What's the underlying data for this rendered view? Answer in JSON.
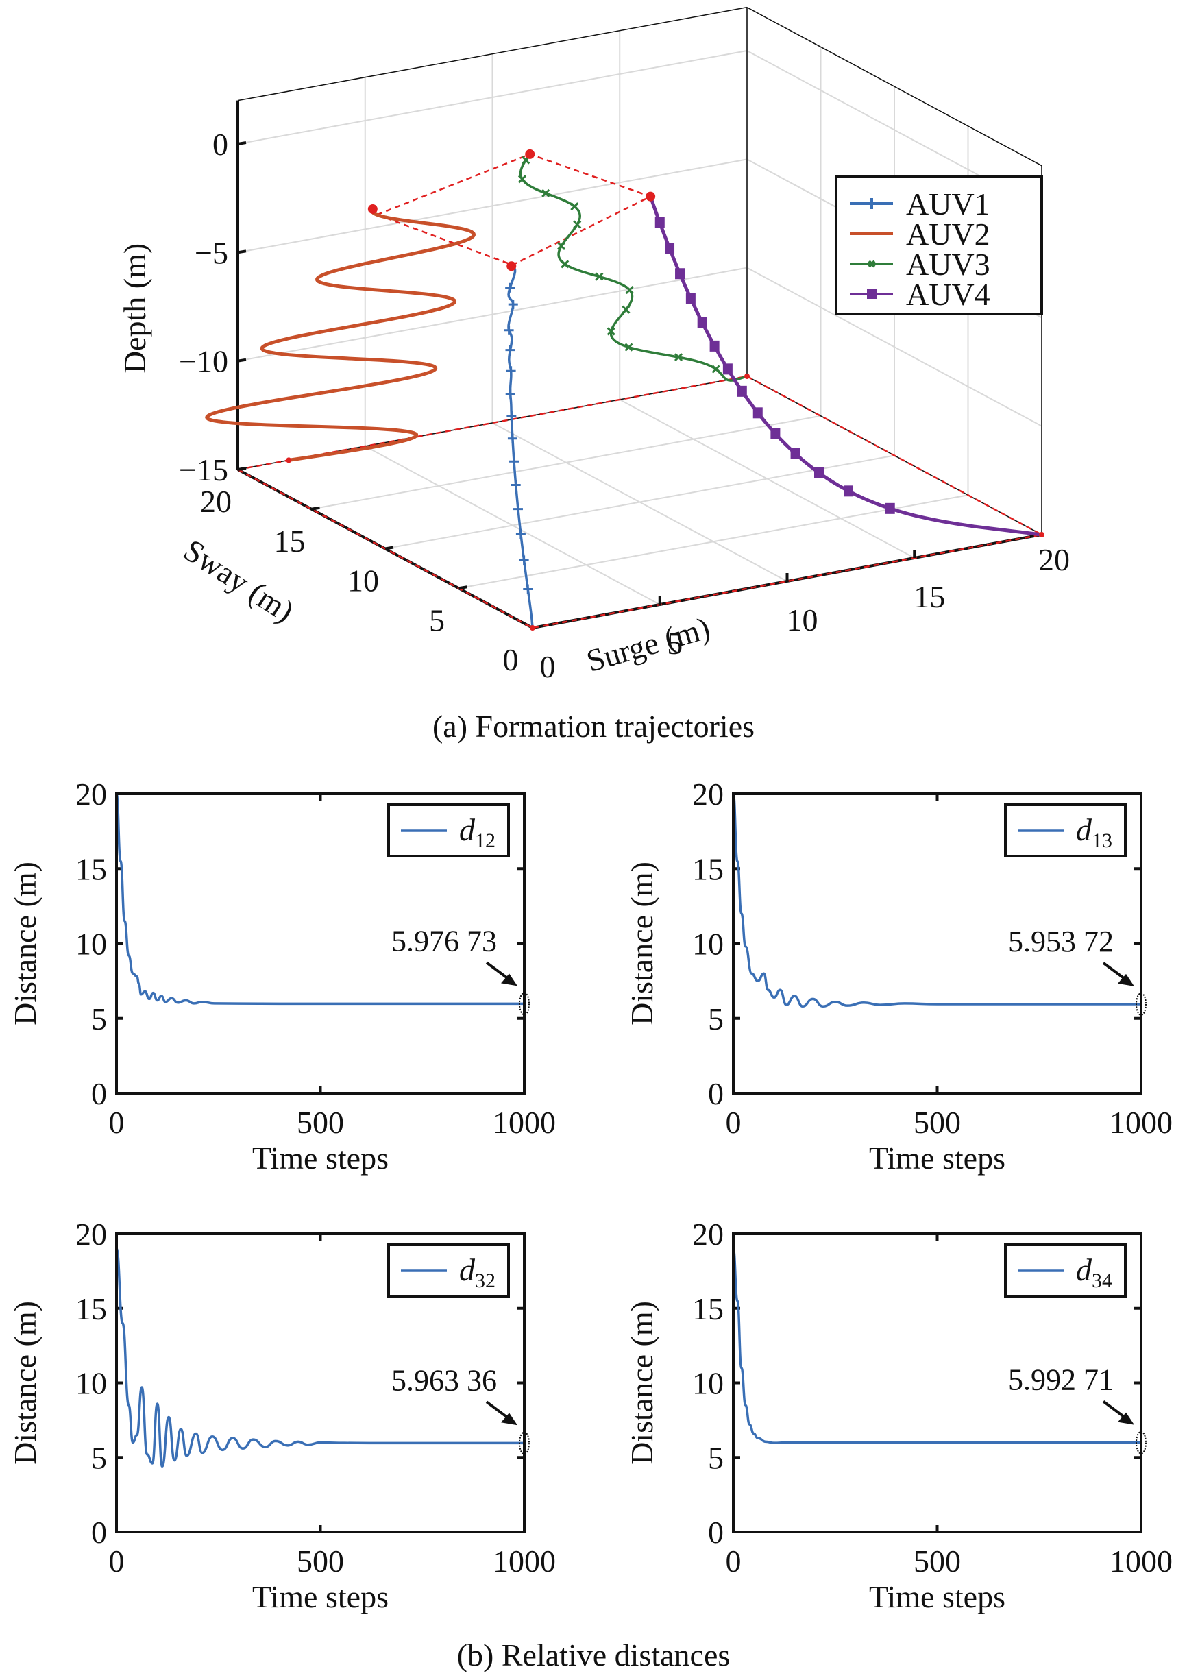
{
  "chart_data": [
    {
      "id": "a",
      "type": "line",
      "subtype": "3d-trajectory",
      "caption": "(a) Formation trajectories",
      "xlabel": "Surge (m)",
      "ylabel": "Sway (m)",
      "zlabel": "Depth (m)",
      "xlim": [
        0,
        20
      ],
      "ylim": [
        0,
        20
      ],
      "zlim": [
        -15,
        2
      ],
      "xticks": [
        "0",
        "5",
        "10",
        "15",
        "20"
      ],
      "yticks": [
        "0",
        "5",
        "10",
        "15",
        "20"
      ],
      "zticks": [
        "0",
        "−5",
        "−10",
        "−15"
      ],
      "grid": true,
      "legend": {
        "position": "top-right",
        "entries": [
          {
            "name": "AUV1",
            "color": "#3a6fb5",
            "marker": "plus"
          },
          {
            "name": "AUV2",
            "color": "#c8502a",
            "marker": "none"
          },
          {
            "name": "AUV3",
            "color": "#2f7d3a",
            "marker": "x"
          },
          {
            "name": "AUV4",
            "color": "#6e2f96",
            "marker": "square"
          }
        ]
      },
      "formation_color": "#e02020",
      "series": [
        {
          "name": "AUV1",
          "start": [
            0,
            0,
            -15
          ],
          "end": [
            5,
            10,
            -3
          ],
          "note": "rises from origin to wiggling end"
        },
        {
          "name": "AUV2",
          "start": [
            0,
            20,
            -15
          ],
          "end": [
            2,
            14,
            -1.5
          ],
          "note": "spiral oscillation while rising"
        },
        {
          "name": "AUV3",
          "start": [
            20,
            20,
            -15
          ],
          "end": [
            8,
            14,
            0
          ],
          "note": "sinusoidal rise"
        },
        {
          "name": "AUV4",
          "start": [
            20,
            0,
            -15
          ],
          "end": [
            11,
            11,
            -1.5
          ],
          "note": "curves up then vertical"
        }
      ]
    },
    {
      "id": "b1",
      "type": "line",
      "xlabel": "Time steps",
      "ylabel": "Distance (m)",
      "xlim": [
        0,
        1000
      ],
      "ylim": [
        0,
        20
      ],
      "xticks": [
        "0",
        "500",
        "1000"
      ],
      "yticks": [
        "0",
        "5",
        "10",
        "15",
        "20"
      ],
      "legend": {
        "position": "top-right",
        "label": "d",
        "sub": "12"
      },
      "annotation": "5.976 73",
      "final_value": 5.97673,
      "color": "#3a6fb5",
      "x": [
        0,
        10,
        20,
        30,
        40,
        50,
        55,
        60,
        70,
        80,
        90,
        100,
        110,
        120,
        135,
        150,
        170,
        190,
        210,
        240,
        300,
        400,
        1000
      ],
      "values": [
        20,
        15.5,
        11.5,
        9.2,
        8.0,
        7.8,
        7.3,
        6.6,
        6.8,
        6.3,
        6.7,
        6.2,
        6.5,
        6.1,
        6.35,
        6.05,
        6.2,
        6.0,
        6.1,
        6.0,
        5.99,
        5.98,
        5.98
      ]
    },
    {
      "id": "b2",
      "type": "line",
      "xlabel": "Time steps",
      "ylabel": "Distance (m)",
      "xlim": [
        0,
        1000
      ],
      "ylim": [
        0,
        20
      ],
      "xticks": [
        "0",
        "500",
        "1000"
      ],
      "yticks": [
        "0",
        "5",
        "10",
        "15",
        "20"
      ],
      "legend": {
        "position": "top-right",
        "label": "d",
        "sub": "13"
      },
      "annotation": "5.953 72",
      "final_value": 5.95372,
      "color": "#3a6fb5",
      "x": [
        0,
        10,
        20,
        30,
        45,
        60,
        75,
        85,
        100,
        115,
        130,
        150,
        170,
        195,
        220,
        250,
        280,
        320,
        360,
        420,
        500,
        1000
      ],
      "values": [
        20,
        15.5,
        12,
        9.8,
        8.0,
        7.5,
        8.0,
        6.9,
        6.4,
        6.9,
        5.9,
        6.5,
        5.8,
        6.3,
        5.8,
        6.1,
        5.85,
        6.05,
        5.9,
        6.0,
        5.95,
        5.95
      ]
    },
    {
      "id": "b3",
      "type": "line",
      "xlabel": "Time steps",
      "ylabel": "Distance (m)",
      "xlim": [
        0,
        1000
      ],
      "ylim": [
        0,
        20
      ],
      "xticks": [
        "0",
        "500",
        "1000"
      ],
      "yticks": [
        "0",
        "5",
        "10",
        "15",
        "20"
      ],
      "legend": {
        "position": "top-right",
        "label": "d",
        "sub": "32"
      },
      "annotation": "5.963 36",
      "final_value": 5.96336,
      "color": "#3a6fb5",
      "x": [
        0,
        15,
        30,
        40,
        50,
        62,
        75,
        88,
        100,
        112,
        128,
        142,
        158,
        172,
        195,
        210,
        235,
        260,
        285,
        310,
        335,
        365,
        390,
        420,
        445,
        470,
        500,
        560,
        620,
        700,
        1000
      ],
      "values": [
        19,
        14,
        8.5,
        6.0,
        6.5,
        9.7,
        5.2,
        4.6,
        8.6,
        4.4,
        7.7,
        4.8,
        6.9,
        5.1,
        6.6,
        5.3,
        6.4,
        5.5,
        6.3,
        5.6,
        6.2,
        5.7,
        6.1,
        5.8,
        6.05,
        5.85,
        6.0,
        5.97,
        5.96,
        5.96,
        5.96
      ]
    },
    {
      "id": "b4",
      "type": "line",
      "xlabel": "Time steps",
      "ylabel": "Distance (m)",
      "xlim": [
        0,
        1000
      ],
      "ylim": [
        0,
        20
      ],
      "xticks": [
        "0",
        "500",
        "1000"
      ],
      "yticks": [
        "0",
        "5",
        "10",
        "15",
        "20"
      ],
      "legend": {
        "position": "top-right",
        "label": "d",
        "sub": "34"
      },
      "annotation": "5.992 71",
      "final_value": 5.99271,
      "color": "#3a6fb5",
      "x": [
        0,
        10,
        20,
        30,
        40,
        50,
        60,
        80,
        100,
        130,
        200,
        1000
      ],
      "values": [
        19,
        15.5,
        11,
        8.5,
        7.2,
        6.6,
        6.3,
        6.05,
        5.97,
        6.0,
        5.99,
        5.99
      ]
    }
  ],
  "captions": {
    "a": "(a) Formation trajectories",
    "b": "(b) Relative distances"
  }
}
